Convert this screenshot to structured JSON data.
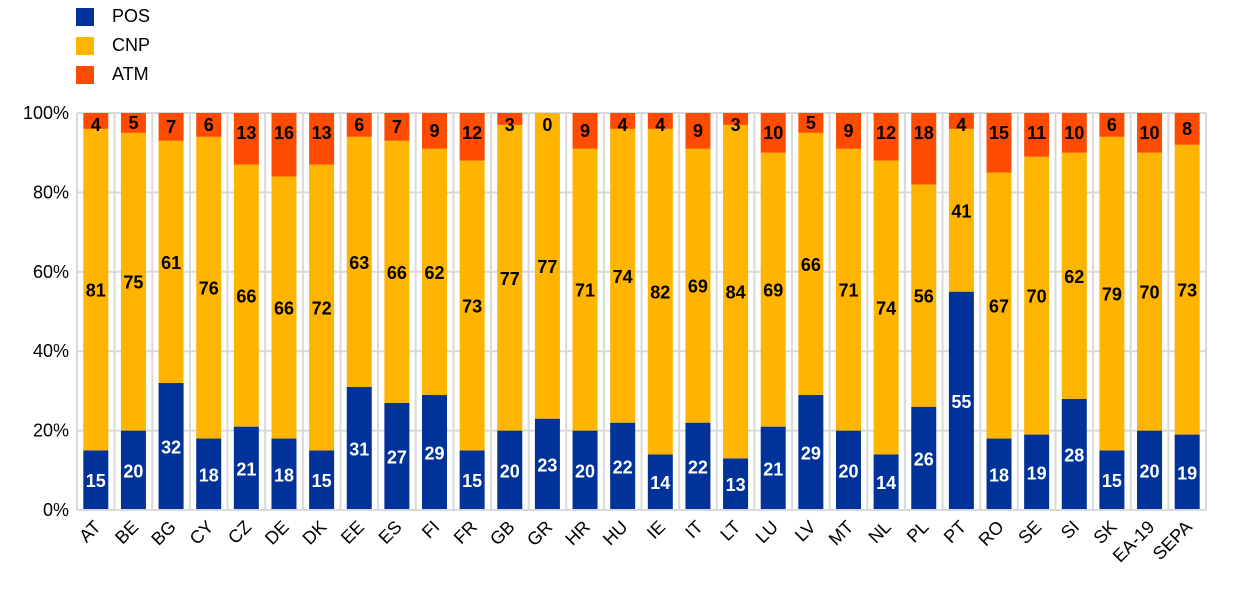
{
  "chart_data": {
    "type": "bar",
    "stacked": true,
    "title": "",
    "xlabel": "",
    "ylabel": "",
    "ylim": [
      0,
      100
    ],
    "y_ticks": [
      "0%",
      "20%",
      "40%",
      "60%",
      "80%",
      "100%"
    ],
    "grid": true,
    "legend_position": "top-left",
    "categories": [
      "AT",
      "BE",
      "BG",
      "CY",
      "CZ",
      "DE",
      "DK",
      "EE",
      "ES",
      "FI",
      "FR",
      "GB",
      "GR",
      "HR",
      "HU",
      "IE",
      "IT",
      "LT",
      "LU",
      "LV",
      "MT",
      "NL",
      "PL",
      "PT",
      "RO",
      "SE",
      "SI",
      "SK",
      "EA-19",
      "SEPA"
    ],
    "series": [
      {
        "name": "POS",
        "color": "#003299",
        "label_color": "#ffffff",
        "values": [
          15,
          20,
          32,
          18,
          21,
          18,
          15,
          31,
          27,
          29,
          15,
          20,
          23,
          20,
          22,
          14,
          22,
          13,
          21,
          29,
          20,
          14,
          26,
          55,
          18,
          19,
          28,
          15,
          20,
          19
        ]
      },
      {
        "name": "CNP",
        "color": "#FFB400",
        "label_color": "#000000",
        "values": [
          81,
          75,
          61,
          76,
          66,
          66,
          72,
          63,
          66,
          62,
          73,
          77,
          77,
          71,
          74,
          82,
          69,
          84,
          69,
          66,
          71,
          74,
          56,
          41,
          67,
          70,
          62,
          79,
          70,
          73
        ]
      },
      {
        "name": "ATM",
        "color": "#FF4B00",
        "label_color": "#000000",
        "values": [
          4,
          5,
          7,
          6,
          13,
          16,
          13,
          6,
          7,
          9,
          12,
          3,
          0,
          9,
          4,
          4,
          9,
          3,
          10,
          5,
          9,
          12,
          18,
          4,
          15,
          11,
          10,
          6,
          10,
          8
        ]
      }
    ]
  }
}
